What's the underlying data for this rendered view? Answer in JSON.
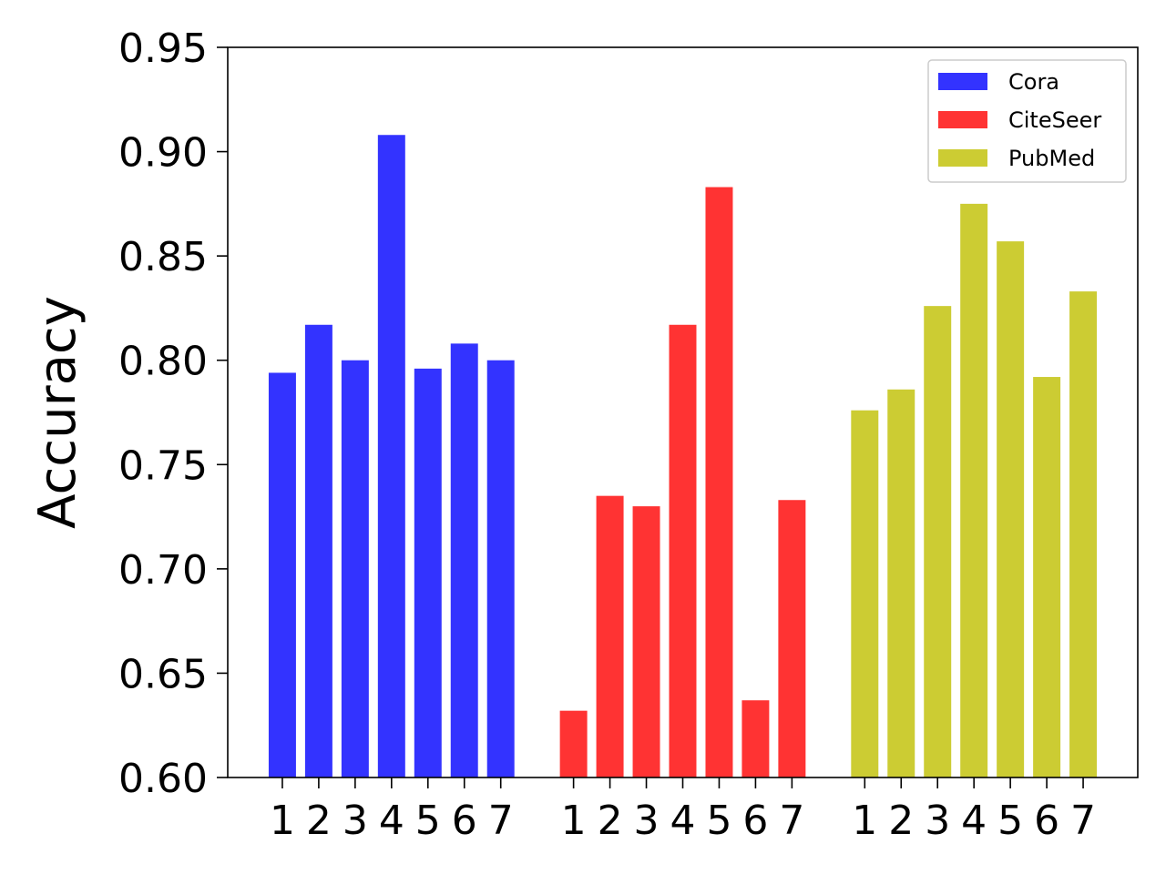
{
  "chart_data": {
    "type": "bar",
    "title": "",
    "xlabel": "",
    "ylabel": "Accuracy",
    "ylim": [
      0.6,
      0.95
    ],
    "yticks": [
      "0.60",
      "0.65",
      "0.70",
      "0.75",
      "0.80",
      "0.85",
      "0.90",
      "0.95"
    ],
    "categories": [
      "1",
      "2",
      "3",
      "4",
      "5",
      "6",
      "7"
    ],
    "grid": false,
    "legend_position": "top-right",
    "series": [
      {
        "name": "Cora",
        "color": "#3333ff",
        "values": [
          0.794,
          0.817,
          0.8,
          0.908,
          0.796,
          0.808,
          0.8
        ]
      },
      {
        "name": "CiteSeer",
        "color": "#ff3333",
        "values": [
          0.632,
          0.735,
          0.73,
          0.817,
          0.883,
          0.637,
          0.733
        ]
      },
      {
        "name": "PubMed",
        "color": "#cccc33",
        "values": [
          0.776,
          0.786,
          0.826,
          0.875,
          0.857,
          0.792,
          0.833
        ]
      }
    ]
  }
}
